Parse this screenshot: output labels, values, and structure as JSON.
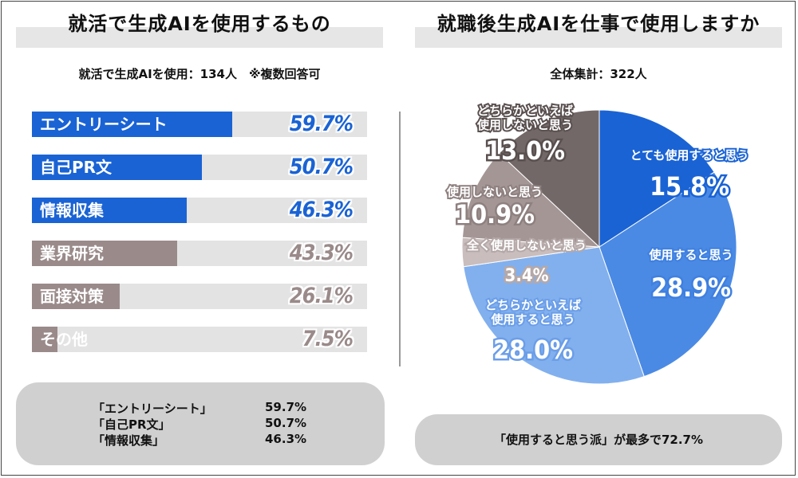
{
  "left": {
    "title": "就活で生成AIを使用するもの",
    "subtitle": "就活で生成AIを使用：134人　※複数回答可",
    "summary": [
      {
        "label": "「エントリーシート」",
        "value": "59.7%"
      },
      {
        "label": "「自己PR文」",
        "value": "50.7%"
      },
      {
        "label": "「情報収集」",
        "value": "46.3%"
      }
    ]
  },
  "right": {
    "title": "就職後生成AIを仕事で使用しますか",
    "subtitle": "全体集計：322人",
    "summary": "「使用すると思う派」が最多で72.7%"
  },
  "colors": {
    "blue": "#1a63d4",
    "mauve": "#9a8a8a",
    "band": "#e6e6e6"
  },
  "chart_data": [
    {
      "type": "bar",
      "orientation": "horizontal",
      "categories": [
        "エントリーシート",
        "自己PR文",
        "情報収集",
        "業界研究",
        "面接対策",
        "その他"
      ],
      "values": [
        59.7,
        50.7,
        46.3,
        43.3,
        26.1,
        7.5
      ],
      "value_labels": [
        "59.7%",
        "50.7%",
        "46.3%",
        "43.3%",
        "26.1%",
        "7.5%"
      ],
      "colors": [
        "#1a63d4",
        "#1a63d4",
        "#1a63d4",
        "#9a8a8a",
        "#9a8a8a",
        "#9a8a8a"
      ],
      "xlim": [
        0,
        100
      ]
    },
    {
      "type": "pie",
      "labels": [
        "とても使用すると思う",
        "使用すると思う",
        "どちらかといえば使用すると思う",
        "全く使用しないと思う",
        "使用しないと思う",
        "どちらかといえば使用しないと思う"
      ],
      "values": [
        15.8,
        28.9,
        28.0,
        3.4,
        10.9,
        13.0
      ],
      "value_labels": [
        "15.8%",
        "28.9%",
        "28.0%",
        "3.4%",
        "10.9%",
        "13.0%"
      ],
      "colors": [
        "#1a63d4",
        "#4a8ae4",
        "#82b0ee",
        "#c9bdbd",
        "#a59696",
        "#736868"
      ]
    }
  ]
}
